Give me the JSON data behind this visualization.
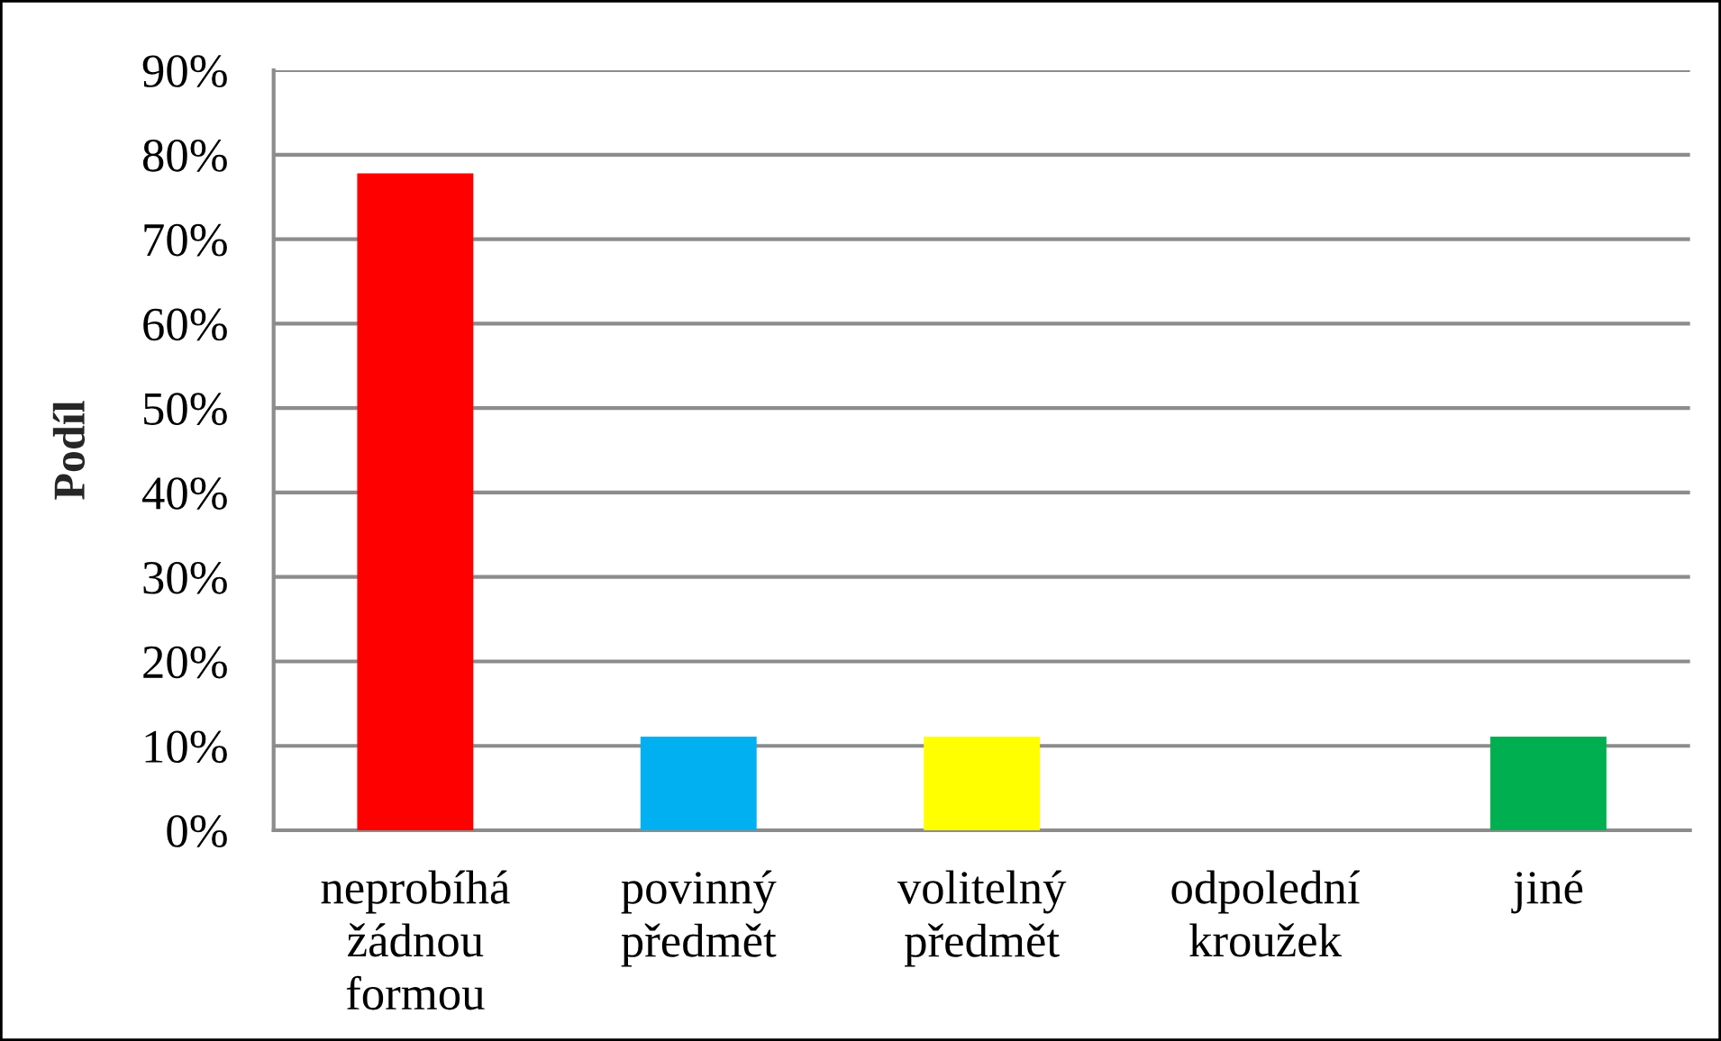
{
  "chart_data": {
    "type": "bar",
    "ylabel": "Podíl",
    "categories": [
      "neprobíhá\nžádnou\nformou",
      "povinný\npředmět",
      "volitelný\npředmět",
      "odpolední\nkroužek",
      "jiné"
    ],
    "values": [
      77.8,
      11.1,
      11.1,
      0,
      11.1
    ],
    "colors": [
      "#ff0000",
      "#00b0f0",
      "#ffff00",
      "#00b050",
      "#00b050"
    ],
    "ylim": [
      0,
      90
    ],
    "yticks": [
      {
        "value": 0,
        "label": "0%"
      },
      {
        "value": 10,
        "label": "10%"
      },
      {
        "value": 20,
        "label": "20%"
      },
      {
        "value": 30,
        "label": "30%"
      },
      {
        "value": 40,
        "label": "40%"
      },
      {
        "value": 50,
        "label": "50%"
      },
      {
        "value": 60,
        "label": "60%"
      },
      {
        "value": 70,
        "label": "70%"
      },
      {
        "value": 80,
        "label": "80%"
      },
      {
        "value": 90,
        "label": "90%"
      }
    ],
    "grid": "y",
    "legend": false
  }
}
